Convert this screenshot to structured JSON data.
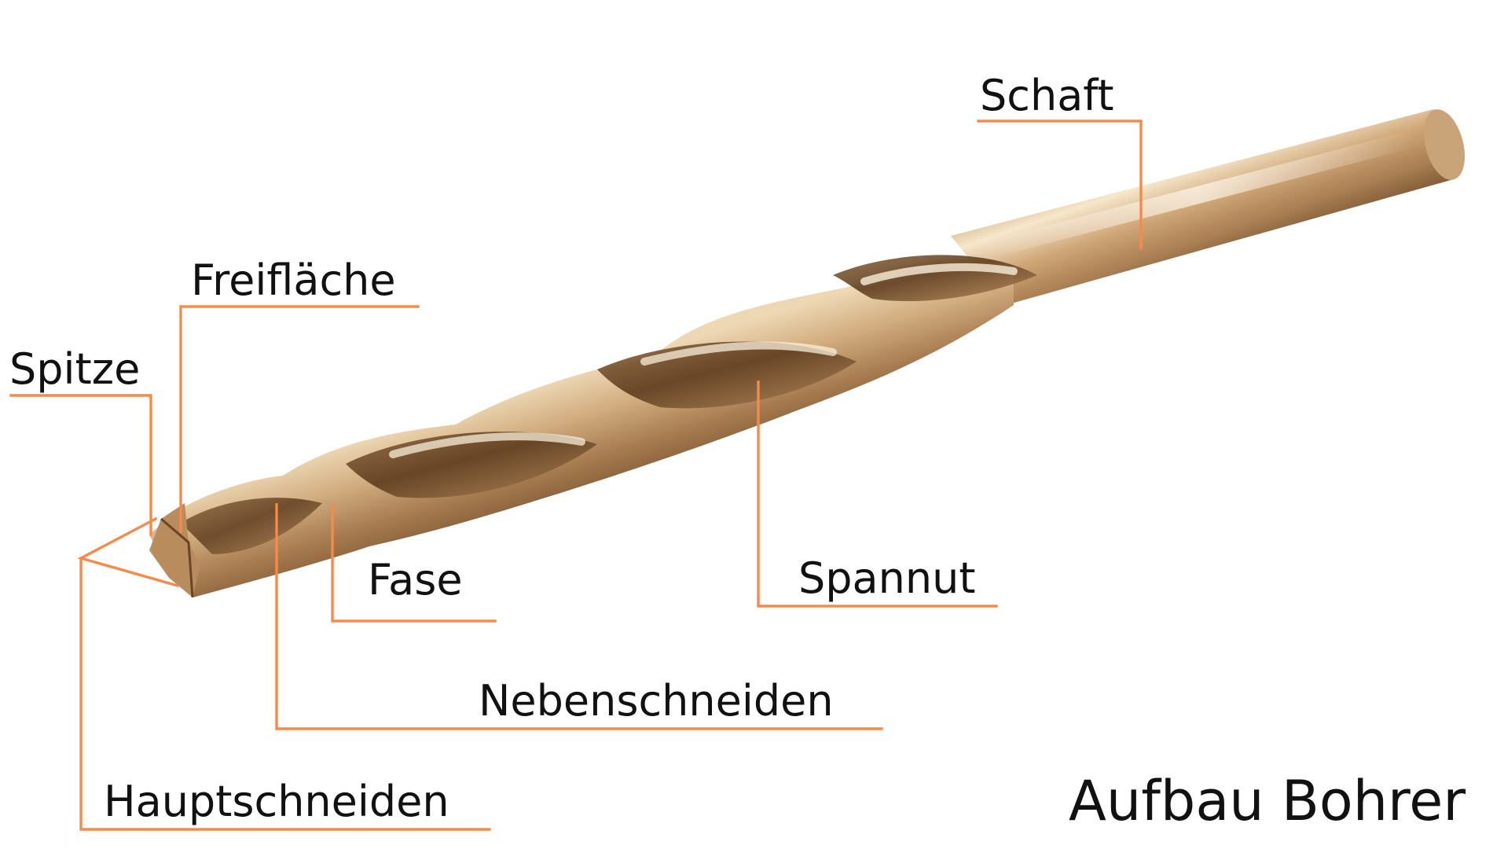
{
  "title": "Aufbau Bohrer",
  "labels": {
    "schaft": "Schaft",
    "freiflaeche": "Freifläche",
    "spitze": "Spitze",
    "fase": "Fase",
    "spannut": "Spannut",
    "nebenschneiden": "Nebenschneiden",
    "hauptschneiden": "Hauptschneiden"
  },
  "colors": {
    "leader": "#F58A4B",
    "bronze_light": "#F3E1C1",
    "bronze_mid": "#C39A67",
    "bronze_dark": "#6B4826",
    "text": "#111111"
  }
}
